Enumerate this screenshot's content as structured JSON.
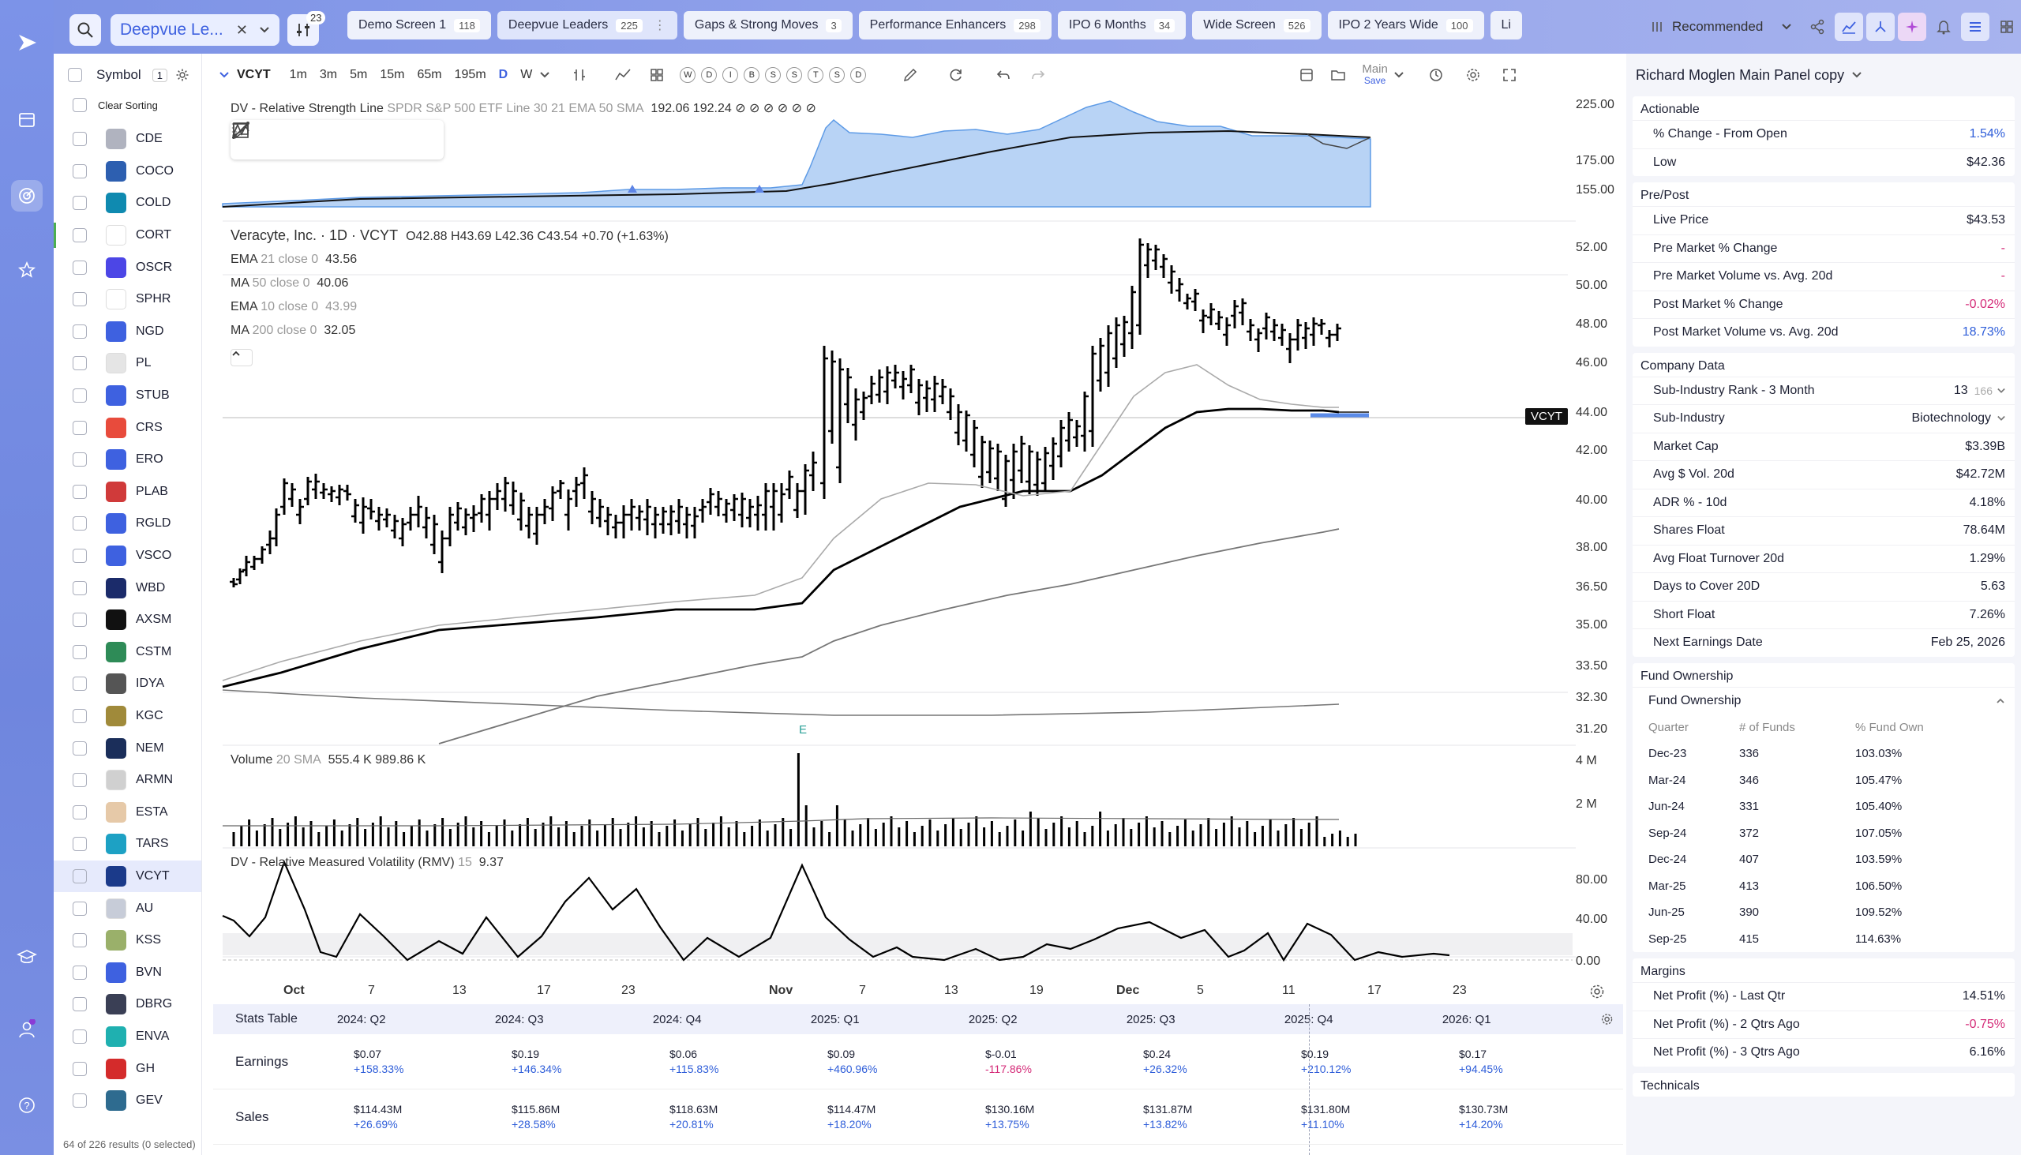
{
  "colors": {
    "accent": "#3e61e0",
    "negative": "#d42b78",
    "positive": "#2f5ed9"
  },
  "rail": {
    "icons": [
      "logo-icon",
      "screens-icon",
      "radar-icon",
      "star-icon",
      "education-icon",
      "account-icon",
      "help-icon"
    ]
  },
  "topbar": {
    "screen_name": "Deepvue Le...",
    "filter_count": "23",
    "tabs": [
      {
        "label": "Demo Screen 1",
        "count": "118"
      },
      {
        "label": "Deepvue Leaders",
        "count": "225"
      },
      {
        "label": "Gaps & Strong Moves",
        "count": "3"
      },
      {
        "label": "Performance Enhancers",
        "count": "298"
      },
      {
        "label": "IPO 6 Months",
        "count": "34"
      },
      {
        "label": "Wide Screen",
        "count": "526"
      },
      {
        "label": "IPO 2 Years Wide",
        "count": "100"
      },
      {
        "label": "Li",
        "count": ""
      }
    ],
    "sort_label": "Recommended"
  },
  "watchlist": {
    "header": "Symbol",
    "header_count": "1",
    "clear_sorting": "Clear Sorting",
    "footer": "64 of 226 results (0 selected)",
    "rows": [
      {
        "sym": "CDE",
        "color": "#b0b3bf"
      },
      {
        "sym": "COCO",
        "color": "#2d5fb0"
      },
      {
        "sym": "COLD",
        "color": "#0f8ab0"
      },
      {
        "sym": "CORT",
        "color": "#ffffff"
      },
      {
        "sym": "OSCR",
        "color": "#4c46e6"
      },
      {
        "sym": "SPHR",
        "color": "#ffffff"
      },
      {
        "sym": "NGD",
        "color": "#3e61e0"
      },
      {
        "sym": "PL",
        "color": "#e5e5e5"
      },
      {
        "sym": "STUB",
        "color": "#3e61e0"
      },
      {
        "sym": "CRS",
        "color": "#e84b3c"
      },
      {
        "sym": "ERO",
        "color": "#3e61e0"
      },
      {
        "sym": "PLAB",
        "color": "#d03a3a"
      },
      {
        "sym": "RGLD",
        "color": "#3e61e0"
      },
      {
        "sym": "VSCO",
        "color": "#3e61e0"
      },
      {
        "sym": "WBD",
        "color": "#1b2b6a"
      },
      {
        "sym": "AXSM",
        "color": "#111111"
      },
      {
        "sym": "CSTM",
        "color": "#2e8b57"
      },
      {
        "sym": "IDYA",
        "color": "#555555"
      },
      {
        "sym": "KGC",
        "color": "#a08a3a"
      },
      {
        "sym": "NEM",
        "color": "#1b2e5a"
      },
      {
        "sym": "ARMN",
        "color": "#d0d0d0"
      },
      {
        "sym": "ESTA",
        "color": "#e6c9a8"
      },
      {
        "sym": "TARS",
        "color": "#1da1c4"
      },
      {
        "sym": "VCYT",
        "color": "#1b3a8a"
      },
      {
        "sym": "AU",
        "color": "#c7ccd8"
      },
      {
        "sym": "KSS",
        "color": "#9ab06a"
      },
      {
        "sym": "BVN",
        "color": "#3e61e0"
      },
      {
        "sym": "DBRG",
        "color": "#3a3f55"
      },
      {
        "sym": "ENVA",
        "color": "#1fb0b0"
      },
      {
        "sym": "GH",
        "color": "#d42b2b"
      },
      {
        "sym": "GEV",
        "color": "#2e6b8f"
      }
    ],
    "selected": "VCYT"
  },
  "chart_toolbar": {
    "symbol": "VCYT",
    "intervals": [
      "1m",
      "3m",
      "5m",
      "15m",
      "65m",
      "195m",
      "D",
      "W"
    ],
    "letters": [
      "W",
      "D",
      "I",
      "B",
      "S",
      "S",
      "T",
      "S",
      "D"
    ],
    "layout_label": "Main",
    "layout_save": "Save"
  },
  "chart": {
    "rs_label": "DV - Relative Strength Line",
    "rs_params": "SPDR S&P 500 ETF Line 30 21 EMA 50 SMA",
    "rs_values": "192.06  192.24  ⊘ ⊘ ⊘ ⊘ ⊘ ⊘",
    "title": "Veracyte, Inc. · 1D · VCYT",
    "ohlc": "O42.88 H43.69 L42.36 C43.54 +0.70 (+1.63%)",
    "ema21": "EMA",
    "ema21_p": "21 close 0",
    "ema21_v": "43.56",
    "ma50": "MA",
    "ma50_p": "50 close 0",
    "ma50_v": "40.06",
    "ema10": "EMA",
    "ema10_p": "10 close 0",
    "ema10_v": "43.99",
    "ma200": "MA",
    "ma200_p": "200 close 0",
    "ma200_v": "32.05",
    "price_tag": "VCYT",
    "earnings_marker": "E",
    "vol_label": "Volume",
    "vol_params": "20 SMA",
    "vol_values": "555.4 K  989.86 K",
    "rmv_label": "DV - Relative Measured Volatility (RMV)",
    "rmv_params": "15",
    "rmv_value": "9.37"
  },
  "chart_data": [
    {
      "type": "line",
      "title": "DV - Relative Strength Line",
      "y_ticks": [
        "225.00",
        "175.00",
        "155.00"
      ]
    },
    {
      "type": "bar",
      "title": "Veracyte, Inc. · 1D · VCYT",
      "y_ticks": [
        "52.00",
        "50.00",
        "48.00",
        "46.00",
        "44.00",
        "42.00",
        "40.00",
        "38.00",
        "36.50",
        "35.00",
        "33.50",
        "32.30",
        "31.20"
      ],
      "x_ticks": [
        "Oct",
        "7",
        "13",
        "17",
        "23",
        "Nov",
        "7",
        "13",
        "19",
        "Dec",
        "5",
        "11",
        "17",
        "23"
      ],
      "ylim": [
        31.2,
        52.0
      ]
    },
    {
      "type": "bar",
      "title": "Volume",
      "y_ticks": [
        "4 M",
        "2 M"
      ]
    },
    {
      "type": "line",
      "title": "DV - Relative Measured Volatility (RMV)",
      "y_ticks": [
        "80.00",
        "40.00",
        "0.00"
      ]
    }
  ],
  "stats": {
    "title": "Stats Table",
    "quarters": [
      "2024: Q2",
      "2024: Q3",
      "2024: Q4",
      "2025: Q1",
      "2025: Q2",
      "2025: Q3",
      "2025: Q4",
      "2026: Q1"
    ],
    "earnings_label": "Earnings",
    "earnings": [
      [
        "$0.07",
        "+158.33%"
      ],
      [
        "$0.19",
        "+146.34%"
      ],
      [
        "$0.06",
        "+115.83%"
      ],
      [
        "$0.09",
        "+460.96%"
      ],
      [
        "$-0.01",
        "-117.86%"
      ],
      [
        "$0.24",
        "+26.32%"
      ],
      [
        "$0.19",
        "+210.12%"
      ],
      [
        "$0.17",
        "+94.45%"
      ]
    ],
    "sales_label": "Sales",
    "sales": [
      [
        "$114.43M",
        "+26.69%"
      ],
      [
        "$115.86M",
        "+28.58%"
      ],
      [
        "$118.63M",
        "+20.81%"
      ],
      [
        "$114.47M",
        "+18.20%"
      ],
      [
        "$130.16M",
        "+13.75%"
      ],
      [
        "$131.87M",
        "+13.82%"
      ],
      [
        "$131.80M",
        "+11.10%"
      ],
      [
        "$130.73M",
        "+14.20%"
      ]
    ]
  },
  "panel": {
    "title": "Richard Moglen Main Panel copy",
    "actionable": {
      "title": "Actionable",
      "rows": [
        {
          "k": "% Change - From Open",
          "v": "1.54%"
        },
        {
          "k": "Low",
          "v": "$42.36"
        }
      ]
    },
    "prepost": {
      "title": "Pre/Post",
      "rows": [
        {
          "k": "Live Price",
          "v": "$43.53"
        },
        {
          "k": "Pre Market % Change",
          "v": "-"
        },
        {
          "k": "Pre Market Volume vs. Avg. 20d",
          "v": "-"
        },
        {
          "k": "Post Market % Change",
          "v": "-0.02%"
        },
        {
          "k": "Post Market Volume vs. Avg. 20d",
          "v": "18.73%"
        }
      ]
    },
    "company": {
      "title": "Company Data",
      "rank_k": "Sub-Industry Rank - 3 Month",
      "rank_v": "13",
      "rank_of": "166",
      "subind_k": "Sub-Industry",
      "subind_v": "Biotechnology",
      "rows": [
        {
          "k": "Market Cap",
          "v": "$3.39B"
        },
        {
          "k": "Avg $ Vol. 20d",
          "v": "$42.72M"
        },
        {
          "k": "ADR % - 10d",
          "v": "4.18%"
        },
        {
          "k": "Shares Float",
          "v": "78.64M"
        },
        {
          "k": "Avg Float Turnover 20d",
          "v": "1.29%"
        },
        {
          "k": "Days to Cover 20D",
          "v": "5.63"
        },
        {
          "k": "Short Float",
          "v": "7.26%"
        },
        {
          "k": "Next Earnings Date",
          "v": "Feb 25, 2026"
        }
      ]
    },
    "fund": {
      "title": "Fund Ownership",
      "sub": "Fund Ownership",
      "cols": [
        "Quarter",
        "# of Funds",
        "% Fund Own"
      ],
      "rows": [
        [
          "Dec-23",
          "336",
          "103.03%"
        ],
        [
          "Mar-24",
          "346",
          "105.47%"
        ],
        [
          "Jun-24",
          "331",
          "105.40%"
        ],
        [
          "Sep-24",
          "372",
          "107.05%"
        ],
        [
          "Dec-24",
          "407",
          "103.59%"
        ],
        [
          "Mar-25",
          "413",
          "106.50%"
        ],
        [
          "Jun-25",
          "390",
          "109.52%"
        ],
        [
          "Sep-25",
          "415",
          "114.63%"
        ]
      ]
    },
    "margins": {
      "title": "Margins",
      "rows": [
        {
          "k": "Net Profit (%) - Last Qtr",
          "v": "14.51%"
        },
        {
          "k": "Net Profit (%) - 2 Qtrs Ago",
          "v": "-0.75%"
        },
        {
          "k": "Net Profit (%) - 3 Qtrs Ago",
          "v": "6.16%"
        }
      ]
    },
    "technicals": "Technicals"
  }
}
